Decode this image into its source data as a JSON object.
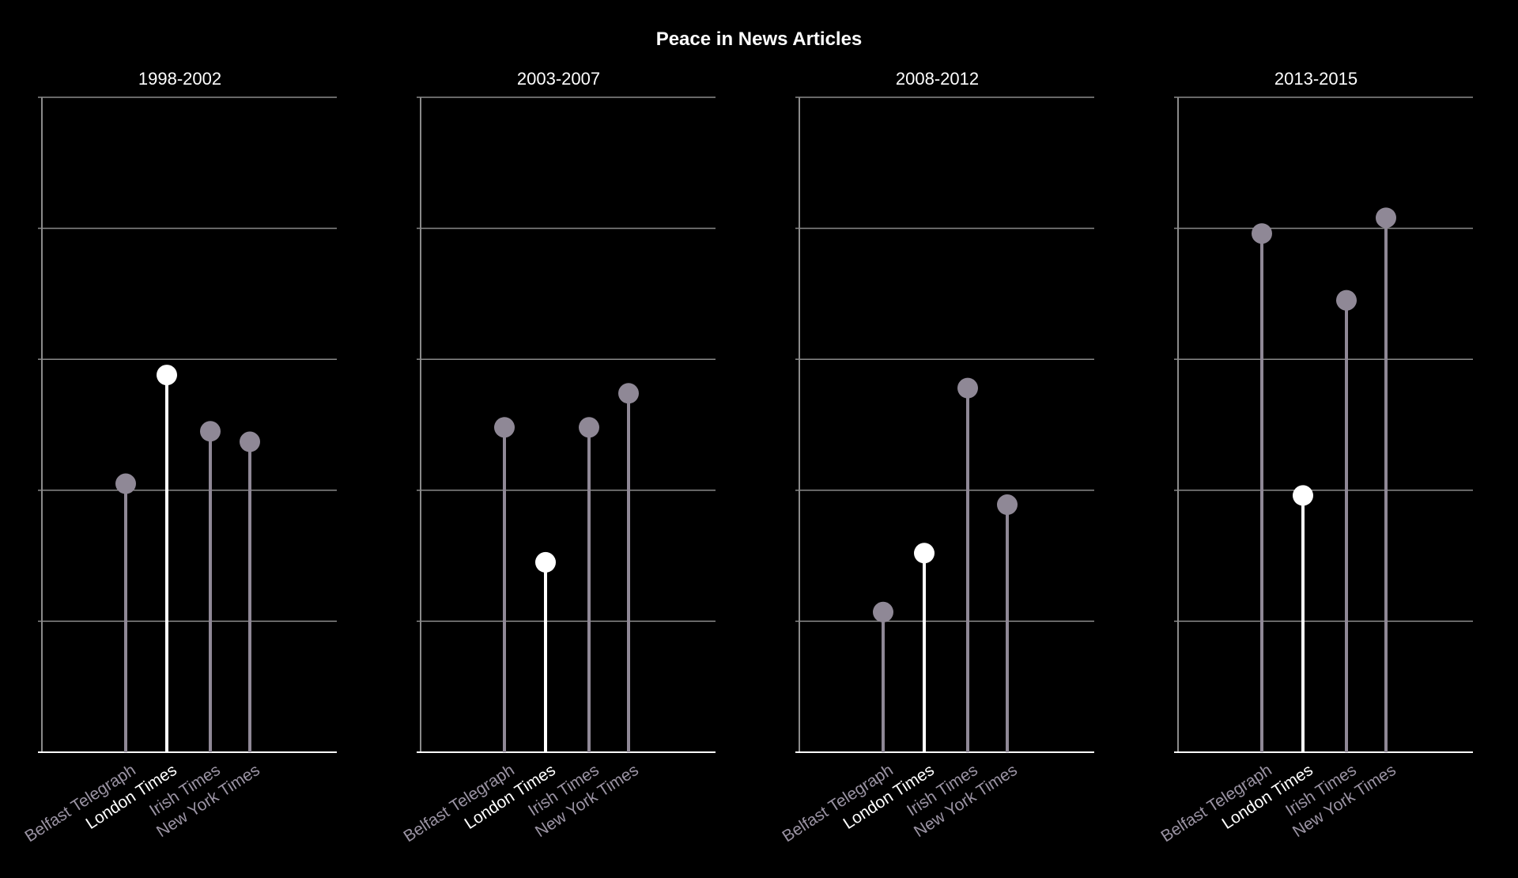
{
  "title": "Peace in News Articles",
  "colors": {
    "background": "#000000",
    "axis": "#ffffff",
    "grid": "#8a8a8a",
    "stem_default": "#8f8896",
    "stem_highlight": "#ffffff",
    "label_default": "#9a93a3",
    "label_highlight": "#ffffff"
  },
  "chart_data": [
    {
      "type": "lollipop",
      "title": "1998-2002",
      "categories": [
        "Belfast Telegraph",
        "London Times",
        "Irish Times",
        "New York Times"
      ],
      "highlight": "London Times",
      "values": [
        2.05,
        2.88,
        2.45,
        2.37
      ],
      "ylim": [
        0,
        5
      ],
      "grid": true
    },
    {
      "type": "lollipop",
      "title": "2003-2007",
      "categories": [
        "Belfast Telegraph",
        "London Times",
        "Irish Times",
        "New York Times"
      ],
      "highlight": "London Times",
      "values": [
        2.48,
        1.45,
        2.48,
        2.74
      ],
      "ylim": [
        0,
        5
      ],
      "grid": true
    },
    {
      "type": "lollipop",
      "title": "2008-2012",
      "categories": [
        "Belfast Telegraph",
        "London Times",
        "Irish Times",
        "New York Times"
      ],
      "highlight": "London Times",
      "values": [
        1.07,
        1.52,
        2.78,
        1.89
      ],
      "ylim": [
        0,
        5
      ],
      "grid": true
    },
    {
      "type": "lollipop",
      "title": "2013-2015",
      "categories": [
        "Belfast Telegraph",
        "London Times",
        "Irish Times",
        "New York Times"
      ],
      "highlight": "London Times",
      "values": [
        3.96,
        1.96,
        3.45,
        4.08
      ],
      "ylim": [
        0,
        5
      ],
      "grid": true
    }
  ]
}
